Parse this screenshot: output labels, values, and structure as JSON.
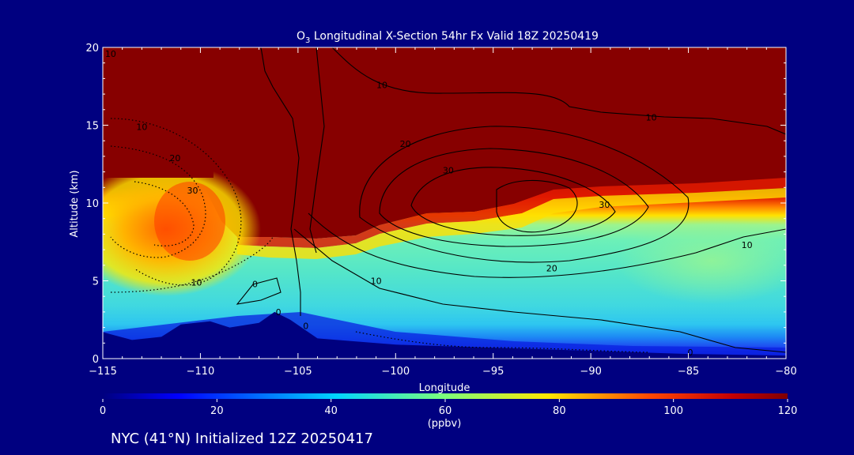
{
  "chart_data": {
    "type": "heatmap",
    "title_prefix": "O",
    "title_sub": "3",
    "title_suffix": " Longitudinal X-Section 54hr  Fx Valid 18Z 20250419",
    "xlabel": "Longitude",
    "ylabel": "Altitude (km)",
    "xlim": [
      -115,
      -80
    ],
    "ylim": [
      0,
      20
    ],
    "x_ticks": [
      -115,
      -110,
      -105,
      -100,
      -95,
      -90,
      -85,
      -80
    ],
    "x_tick_labels": [
      "−115",
      "−110",
      "−105",
      "−100",
      "−95",
      "−90",
      "−85",
      "−80"
    ],
    "y_ticks": [
      0,
      5,
      10,
      15,
      20
    ],
    "y_tick_labels": [
      "0",
      "5",
      "10",
      "15",
      "20"
    ],
    "colorbar": {
      "range": [
        0,
        120
      ],
      "ticks": [
        0,
        20,
        40,
        60,
        80,
        100,
        120
      ],
      "tick_labels": [
        "0",
        "20",
        "40",
        "60",
        "80",
        "100",
        "120"
      ],
      "unit": "(ppbv)"
    },
    "contour_labels": [
      {
        "text": "10",
        "x": -114.6,
        "y": 19.6
      },
      {
        "text": "10",
        "x": -113.0,
        "y": 14.9
      },
      {
        "text": "20",
        "x": -111.3,
        "y": 12.9
      },
      {
        "text": "30",
        "x": -110.4,
        "y": 10.8
      },
      {
        "text": "10",
        "x": -110.2,
        "y": 4.9
      },
      {
        "text": "0",
        "x": -107.2,
        "y": 4.8
      },
      {
        "text": "0",
        "x": -106.0,
        "y": 3.0
      },
      {
        "text": "0",
        "x": -104.6,
        "y": 2.1
      },
      {
        "text": "10",
        "x": -100.7,
        "y": 17.6
      },
      {
        "text": "20",
        "x": -99.5,
        "y": 13.8
      },
      {
        "text": "30",
        "x": -97.3,
        "y": 12.1
      },
      {
        "text": "10",
        "x": -101.0,
        "y": 5.0
      },
      {
        "text": "20",
        "x": -92.0,
        "y": 5.8
      },
      {
        "text": "30",
        "x": -89.3,
        "y": 9.9
      },
      {
        "text": "10",
        "x": -86.9,
        "y": 15.5
      },
      {
        "text": "10",
        "x": -82.0,
        "y": 7.3
      },
      {
        "text": "0",
        "x": -84.9,
        "y": 0.4
      }
    ],
    "terrain_km": [
      [
        -115,
        1.7
      ],
      [
        -113.5,
        1.2
      ],
      [
        -112,
        1.4
      ],
      [
        -111,
        2.2
      ],
      [
        -109.5,
        2.4
      ],
      [
        -108.5,
        2.0
      ],
      [
        -107,
        2.3
      ],
      [
        -106.2,
        3.0
      ],
      [
        -105.4,
        2.5
      ],
      [
        -104,
        1.3
      ],
      [
        -100,
        0.9
      ],
      [
        -95,
        0.7
      ],
      [
        -90,
        0.5
      ],
      [
        -85,
        0.3
      ],
      [
        -80,
        0.2
      ]
    ]
  },
  "footer": {
    "station": "NYC (41°N) Initialized 12Z 20250417"
  }
}
